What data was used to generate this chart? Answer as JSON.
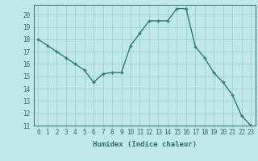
{
  "x": [
    0,
    1,
    2,
    3,
    4,
    5,
    6,
    7,
    8,
    9,
    10,
    11,
    12,
    13,
    14,
    15,
    16,
    17,
    18,
    19,
    20,
    21,
    22,
    23
  ],
  "y": [
    18,
    17.5,
    17,
    16.5,
    16,
    15.5,
    14.5,
    15.2,
    15.3,
    15.3,
    17.5,
    18.5,
    19.5,
    19.5,
    19.5,
    20.5,
    20.5,
    17.4,
    16.5,
    15.3,
    14.5,
    13.5,
    11.8,
    11
  ],
  "line_color": "#2e7d6e",
  "marker_color": "#2e7d6e",
  "bg_color": "#c0e8e4",
  "grid_color": "#9ecfcb",
  "xlabel": "Humidex (Indice chaleur)",
  "xlim": [
    -0.5,
    23.5
  ],
  "ylim": [
    11,
    20.8
  ],
  "yticks": [
    11,
    12,
    13,
    14,
    15,
    16,
    17,
    18,
    19,
    20
  ],
  "xticks": [
    0,
    1,
    2,
    3,
    4,
    5,
    6,
    7,
    8,
    9,
    10,
    11,
    12,
    13,
    14,
    15,
    16,
    17,
    18,
    19,
    20,
    21,
    22,
    23
  ],
  "tick_color": "#2e6e64",
  "label_fontsize": 6.5,
  "tick_fontsize": 5.5
}
